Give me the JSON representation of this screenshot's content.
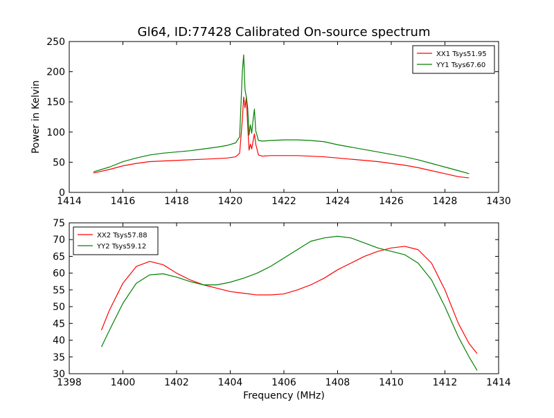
{
  "figure": {
    "title": "Gl64, ID:77428 Calibrated On-source spectrum"
  },
  "chart_data": [
    {
      "type": "line",
      "title": "Gl64, ID:77428 Calibrated On-source spectrum",
      "xlabel": "",
      "ylabel": "Power in Kelvin",
      "xlim": [
        1414,
        1430
      ],
      "ylim": [
        0,
        250
      ],
      "xticks": [
        1414,
        1416,
        1418,
        1420,
        1422,
        1424,
        1426,
        1428,
        1430
      ],
      "yticks": [
        0,
        50,
        100,
        150,
        200,
        250
      ],
      "grid": false,
      "legend_position": "top-right",
      "series": [
        {
          "name": "XX1 Tsys51.95",
          "color": "#ff0000",
          "x": [
            1414.9,
            1415.5,
            1416,
            1416.5,
            1417,
            1417.5,
            1418,
            1418.5,
            1419,
            1419.5,
            1419.9,
            1420.2,
            1420.35,
            1420.45,
            1420.5,
            1420.55,
            1420.6,
            1420.65,
            1420.7,
            1420.75,
            1420.8,
            1420.85,
            1420.9,
            1420.95,
            1421.05,
            1421.2,
            1421.5,
            1422,
            1422.5,
            1423,
            1423.5,
            1424,
            1424.5,
            1425,
            1425.5,
            1426,
            1426.5,
            1427,
            1427.5,
            1428,
            1428.5,
            1428.9
          ],
          "y": [
            32,
            38,
            44,
            48,
            51,
            52,
            53,
            54,
            55,
            56,
            57,
            59,
            65,
            120,
            158,
            140,
            158,
            110,
            70,
            80,
            72,
            85,
            97,
            80,
            62,
            60,
            61,
            61,
            61,
            60,
            59,
            57,
            55,
            53,
            51,
            48,
            45,
            41,
            36,
            31,
            26,
            24
          ]
        },
        {
          "name": "YY1 Tsys67.60",
          "color": "#008000",
          "x": [
            1414.9,
            1415.5,
            1416,
            1416.5,
            1417,
            1417.5,
            1418,
            1418.5,
            1419,
            1419.5,
            1419.9,
            1420.2,
            1420.35,
            1420.45,
            1420.5,
            1420.55,
            1420.6,
            1420.65,
            1420.7,
            1420.75,
            1420.8,
            1420.85,
            1420.9,
            1420.95,
            1421.05,
            1421.2,
            1421.5,
            1422,
            1422.5,
            1423,
            1423.5,
            1424,
            1424.5,
            1425,
            1425.5,
            1426,
            1426.5,
            1427,
            1427.5,
            1428,
            1428.5,
            1428.9
          ],
          "y": [
            34,
            42,
            51,
            57,
            62,
            65,
            67,
            69,
            72,
            75,
            78,
            82,
            92,
            200,
            228,
            170,
            158,
            140,
            95,
            112,
            98,
            120,
            138,
            102,
            86,
            85,
            86,
            87,
            87,
            86,
            84,
            79,
            75,
            71,
            67,
            63,
            59,
            54,
            48,
            42,
            36,
            31
          ]
        }
      ]
    },
    {
      "type": "line",
      "title": "",
      "xlabel": "Frequency (MHz)",
      "ylabel": "",
      "xlim": [
        1398,
        1414
      ],
      "ylim": [
        30,
        75
      ],
      "xticks": [
        1398,
        1400,
        1402,
        1404,
        1406,
        1408,
        1410,
        1412,
        1414
      ],
      "yticks": [
        30,
        35,
        40,
        45,
        50,
        55,
        60,
        65,
        70,
        75
      ],
      "grid": false,
      "legend_position": "top-left",
      "series": [
        {
          "name": "XX2 Tsys57.88",
          "color": "#ff0000",
          "x": [
            1399.2,
            1399.5,
            1400,
            1400.5,
            1401,
            1401.5,
            1402,
            1402.5,
            1403,
            1403.5,
            1404,
            1404.5,
            1405,
            1405.5,
            1406,
            1406.5,
            1407,
            1407.5,
            1408,
            1408.5,
            1409,
            1409.5,
            1410,
            1410.5,
            1411,
            1411.5,
            1412,
            1412.5,
            1412.9,
            1413.2
          ],
          "y": [
            43,
            49,
            57,
            62,
            63.5,
            62.5,
            60,
            58,
            56.5,
            55.5,
            54.5,
            54,
            53.5,
            53.5,
            53.8,
            55,
            56.5,
            58.5,
            61,
            63,
            65,
            66.5,
            67.5,
            68,
            67,
            63,
            55,
            45,
            39,
            36
          ]
        },
        {
          "name": "YY2 Tsys59.12",
          "color": "#008000",
          "x": [
            1399.2,
            1399.5,
            1400,
            1400.5,
            1401,
            1401.5,
            1402,
            1402.5,
            1403,
            1403.5,
            1404,
            1404.5,
            1405,
            1405.5,
            1406,
            1406.5,
            1407,
            1407.5,
            1408,
            1408.5,
            1409,
            1409.5,
            1410,
            1410.5,
            1411,
            1411.5,
            1412,
            1412.5,
            1412.9,
            1413.2
          ],
          "y": [
            38,
            43,
            51,
            57,
            59.5,
            59.8,
            58.8,
            57.5,
            56.5,
            56.5,
            57.3,
            58.5,
            60,
            62,
            64.5,
            67,
            69.5,
            70.5,
            71,
            70.5,
            69,
            67.5,
            66.5,
            65.5,
            63,
            58,
            50,
            41,
            35,
            31
          ]
        }
      ]
    }
  ]
}
